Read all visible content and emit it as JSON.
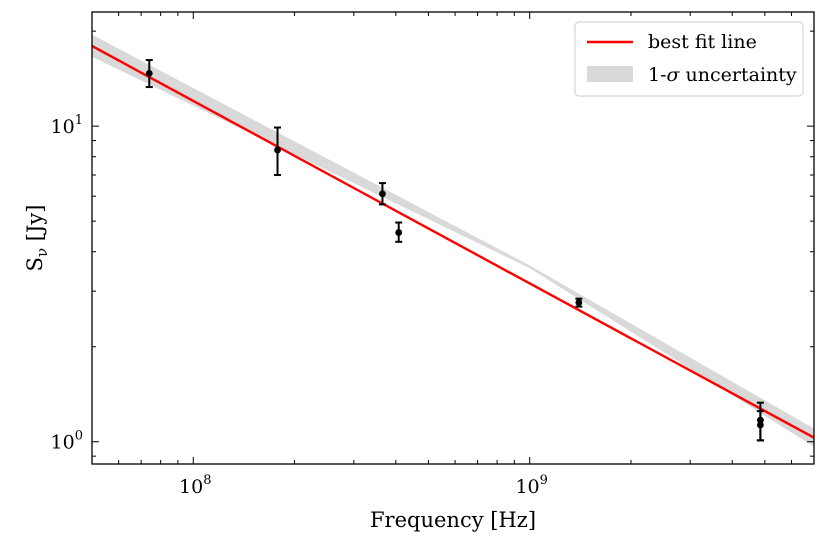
{
  "chart_data": {
    "type": "scatter",
    "title": "",
    "xlabel": "Frequency [Hz]",
    "ylabel": "Sν [Jy]",
    "xscale": "log",
    "yscale": "log",
    "xlim": [
      50000000,
      7000000000
    ],
    "ylim": [
      0.85,
      23
    ],
    "x_major_ticks": [
      {
        "value": 100000000,
        "base": "10",
        "exp": "8"
      },
      {
        "value": 1000000000,
        "base": "10",
        "exp": "9"
      }
    ],
    "y_major_ticks": [
      {
        "value": 1,
        "base": "10",
        "exp": "0"
      },
      {
        "value": 10,
        "base": "10",
        "exp": "1"
      }
    ],
    "points": [
      {
        "x": 74000000,
        "y": 14.7,
        "yerr_low": 1.4,
        "yerr_high": 1.5
      },
      {
        "x": 178000000,
        "y": 8.4,
        "yerr_low": 1.4,
        "yerr_high": 1.5
      },
      {
        "x": 365000000,
        "y": 6.1,
        "yerr_low": 0.45,
        "yerr_high": 0.5
      },
      {
        "x": 408000000,
        "y": 4.6,
        "yerr_low": 0.3,
        "yerr_high": 0.35
      },
      {
        "x": 1400000000,
        "y": 2.76,
        "yerr_low": 0.08,
        "yerr_high": 0.08
      },
      {
        "x": 4850000000,
        "y": 1.17,
        "yerr_low": 0.16,
        "yerr_high": 0.16
      },
      {
        "x": 4850000000,
        "y": 1.13,
        "yerr_low": 0.12,
        "yerr_high": 0.12
      }
    ],
    "fit_line": {
      "name": "best fit line",
      "color": "#ff0000",
      "x": [
        50000000,
        7000000000
      ],
      "y": [
        17.95,
        1.03
      ]
    },
    "uncertainty_band": {
      "name": "1-σ uncertainty",
      "color": "#d9d9d9",
      "x": [
        50000000,
        1000000000,
        7000000000
      ],
      "y_low": [
        16.6,
        3.55,
        0.965
      ],
      "y_high": [
        19.5,
        3.62,
        1.1
      ]
    },
    "legend": {
      "location": "top-right",
      "entries": [
        {
          "label": "best fit line",
          "kind": "line",
          "color": "#ff0000"
        },
        {
          "label_prefix": "1-",
          "label_symbol": "σ",
          "label_suffix": " uncertainty",
          "kind": "patch",
          "color": "#d9d9d9"
        }
      ]
    },
    "marker_color": "#000000"
  }
}
